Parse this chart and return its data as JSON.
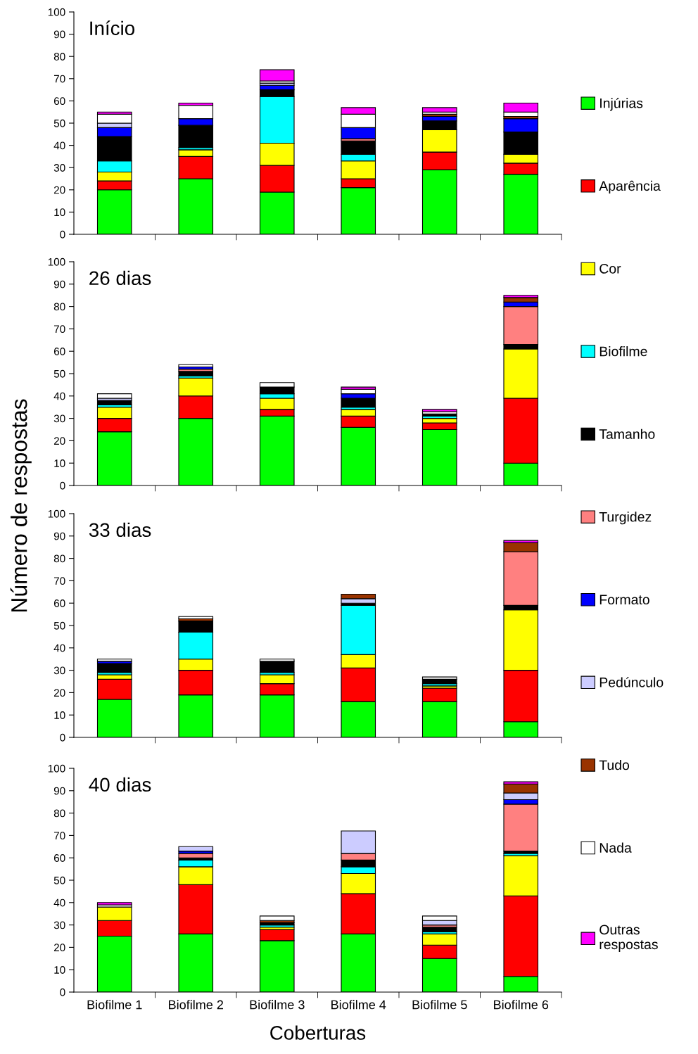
{
  "chart_data": [
    {
      "type": "bar",
      "stacked": true,
      "title": "Início",
      "ylim": [
        0,
        100
      ],
      "yticks": [
        0,
        10,
        20,
        30,
        40,
        50,
        60,
        70,
        80,
        90,
        100
      ],
      "tick_labels": "y",
      "legend": "right",
      "series": [
        {
          "name": "Injúrias",
          "color": "#00ff00",
          "values": [
            20,
            25,
            19,
            21,
            29,
            27
          ]
        },
        {
          "name": "Aparência",
          "color": "#ff0000",
          "values": [
            4,
            10,
            12,
            4,
            8,
            5
          ]
        },
        {
          "name": "Cor",
          "color": "#ffff00",
          "values": [
            4,
            3,
            10,
            8,
            10,
            4
          ]
        },
        {
          "name": "Biofilme",
          "color": "#00ffff",
          "values": [
            5,
            1,
            21,
            3,
            0,
            0
          ]
        },
        {
          "name": "Tamanho",
          "color": "#000000",
          "values": [
            11,
            10,
            3,
            6,
            4,
            10
          ]
        },
        {
          "name": "Turgidez",
          "color": "#ff8080",
          "values": [
            0,
            0,
            0,
            1,
            0,
            0
          ]
        },
        {
          "name": "Formato",
          "color": "#0000ff",
          "values": [
            4,
            3,
            2,
            5,
            2,
            6
          ]
        },
        {
          "name": "Pedúnculo",
          "color": "#ccccff",
          "values": [
            2,
            0,
            1,
            0,
            0,
            0
          ]
        },
        {
          "name": "Tudo",
          "color": "#993300",
          "values": [
            0,
            0,
            0,
            0,
            1,
            1
          ]
        },
        {
          "name": "Nada",
          "color": "#ffffff",
          "values": [
            4,
            6,
            1,
            6,
            1,
            2
          ]
        },
        {
          "name": "Outras respostas",
          "color": "#ff00ff",
          "values": [
            1,
            1,
            5,
            3,
            2,
            4
          ]
        }
      ]
    },
    {
      "type": "bar",
      "stacked": true,
      "title": "26 dias",
      "ylabel": "Número de respostas",
      "ylim": [
        0,
        100
      ],
      "yticks": [
        0,
        10,
        20,
        30,
        40,
        50,
        60,
        70,
        80,
        90,
        100
      ],
      "tick_labels": "y",
      "series": [
        {
          "color": "#00ff00",
          "values": [
            24,
            30,
            31,
            26,
            25,
            10
          ]
        },
        {
          "color": "#ff0000",
          "values": [
            6,
            10,
            3,
            5,
            3,
            29
          ]
        },
        {
          "color": "#ffff00",
          "values": [
            5,
            8,
            5,
            3,
            2,
            22
          ]
        },
        {
          "color": "#00ffff",
          "values": [
            1,
            1,
            2,
            1,
            1,
            0
          ]
        },
        {
          "color": "#000000",
          "values": [
            2,
            2,
            3,
            4,
            1,
            2
          ]
        },
        {
          "color": "#ff8080",
          "values": [
            0,
            1,
            0,
            0,
            0,
            17
          ]
        },
        {
          "color": "#0000ff",
          "values": [
            0,
            1,
            0,
            2,
            0,
            2
          ]
        },
        {
          "color": "#ccccff",
          "values": [
            1,
            0,
            0,
            0,
            0,
            0
          ]
        },
        {
          "color": "#993300",
          "values": [
            0,
            0,
            0,
            0,
            0,
            2
          ]
        },
        {
          "color": "#ffffff",
          "values": [
            2,
            1,
            2,
            2,
            1,
            0
          ]
        },
        {
          "color": "#ff00ff",
          "values": [
            0,
            0,
            0,
            1,
            1,
            1
          ]
        }
      ]
    },
    {
      "type": "bar",
      "stacked": true,
      "title": "33 dias",
      "ylim": [
        0,
        100
      ],
      "yticks": [
        0,
        10,
        20,
        30,
        40,
        50,
        60,
        70,
        80,
        90,
        100
      ],
      "tick_labels": "y",
      "series": [
        {
          "color": "#00ff00",
          "values": [
            17,
            19,
            19,
            16,
            16,
            7
          ]
        },
        {
          "color": "#ff0000",
          "values": [
            9,
            11,
            5,
            15,
            6,
            23
          ]
        },
        {
          "color": "#ffff00",
          "values": [
            2,
            5,
            4,
            6,
            1,
            27
          ]
        },
        {
          "color": "#00ffff",
          "values": [
            1,
            12,
            1,
            22,
            1,
            0
          ]
        },
        {
          "color": "#000000",
          "values": [
            4,
            5,
            5,
            1,
            2,
            2
          ]
        },
        {
          "color": "#ff8080",
          "values": [
            0,
            0,
            0,
            0,
            0,
            24
          ]
        },
        {
          "color": "#0000ff",
          "values": [
            1,
            0,
            0,
            0,
            0,
            0
          ]
        },
        {
          "color": "#ccccff",
          "values": [
            0,
            0,
            0,
            2,
            0,
            0
          ]
        },
        {
          "color": "#993300",
          "values": [
            0,
            1,
            0,
            2,
            0,
            4
          ]
        },
        {
          "color": "#ffffff",
          "values": [
            1,
            1,
            1,
            0,
            1,
            0
          ]
        },
        {
          "color": "#ff00ff",
          "values": [
            0,
            0,
            0,
            0,
            0,
            1
          ]
        }
      ]
    },
    {
      "type": "bar",
      "stacked": true,
      "title": "40 dias",
      "xlabel": "Coberturas",
      "categories": [
        "Biofilme 1",
        "Biofilme 2",
        "Biofilme 3",
        "Biofilme 4",
        "Biofilme 5",
        "Biofilme 6"
      ],
      "ylim": [
        0,
        100
      ],
      "yticks": [
        0,
        10,
        20,
        30,
        40,
        50,
        60,
        70,
        80,
        90,
        100
      ],
      "series": [
        {
          "color": "#00ff00",
          "values": [
            25,
            26,
            23,
            26,
            15,
            7
          ]
        },
        {
          "color": "#ff0000",
          "values": [
            7,
            22,
            5,
            18,
            6,
            36
          ]
        },
        {
          "color": "#ffff00",
          "values": [
            6,
            8,
            1,
            9,
            5,
            18
          ]
        },
        {
          "color": "#00ffff",
          "values": [
            0,
            3,
            1,
            3,
            1,
            1
          ]
        },
        {
          "color": "#000000",
          "values": [
            0,
            1,
            1,
            3,
            2,
            1
          ]
        },
        {
          "color": "#ff8080",
          "values": [
            0,
            2,
            0,
            3,
            1,
            21
          ]
        },
        {
          "color": "#0000ff",
          "values": [
            0,
            1,
            0,
            0,
            0,
            2
          ]
        },
        {
          "color": "#ccccff",
          "values": [
            0,
            2,
            0,
            10,
            2,
            3
          ]
        },
        {
          "color": "#993300",
          "values": [
            0,
            0,
            1,
            0,
            0,
            4
          ]
        },
        {
          "color": "#ffffff",
          "values": [
            1,
            0,
            2,
            0,
            2,
            0
          ]
        },
        {
          "color": "#ff00ff",
          "values": [
            1,
            0,
            0,
            0,
            0,
            1
          ]
        }
      ]
    }
  ]
}
